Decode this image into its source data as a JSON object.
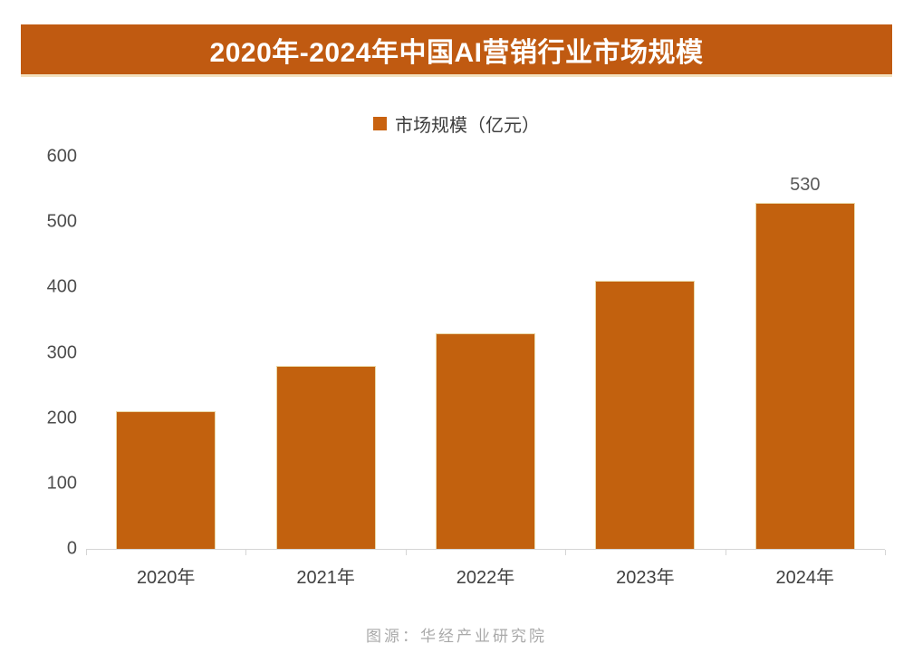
{
  "title": {
    "text": "2020年-2024年中国AI营销行业市场规模"
  },
  "legend": {
    "label": "市场规模（亿元）",
    "marker_color": "#C9620F"
  },
  "source": {
    "text": "图源：华经产业研究院"
  },
  "colors": {
    "banner_bg": "#C05A11",
    "banner_border": "#F3E1BE",
    "bar_fill": "#C2610E",
    "bar_outline": "#EAD8A6",
    "axis_line": "#D5D5D5",
    "y_label": "#4D4D4D",
    "x_label": "#404040",
    "value_label": "#595959",
    "source_text": "#A9A9A9",
    "title_text": "#FFFFFF"
  },
  "chart_data": {
    "type": "bar",
    "title": "2020年-2024年中国AI营销行业市场规模",
    "series_name": "市场规模（亿元）",
    "categories": [
      "2020年",
      "2021年",
      "2022年",
      "2023年",
      "2024年"
    ],
    "values": [
      210,
      280,
      330,
      410,
      530
    ],
    "data_labels": [
      "",
      "",
      "",
      "",
      "530"
    ],
    "xlabel": "",
    "ylabel": "",
    "unit": "亿元",
    "ylim": [
      0,
      600
    ],
    "yticks": [
      0,
      100,
      200,
      300,
      400,
      500,
      600
    ],
    "grid": false,
    "legend_position": "top-center"
  }
}
